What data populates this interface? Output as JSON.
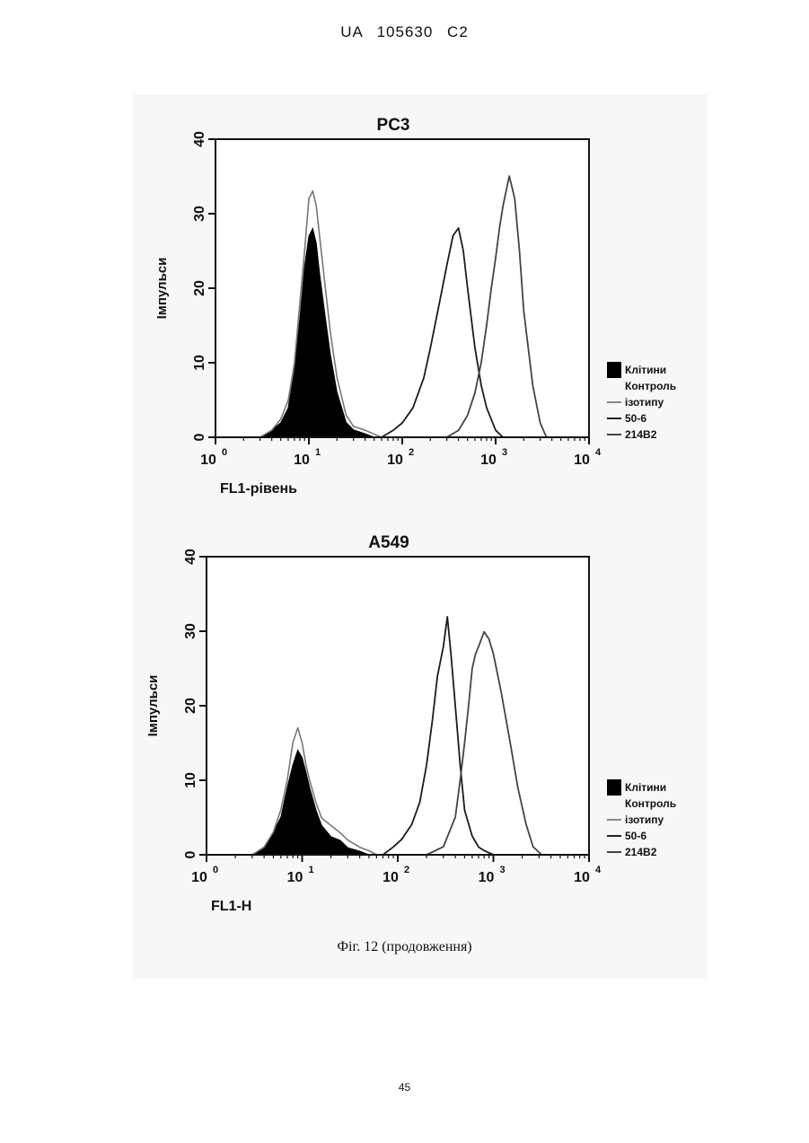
{
  "header": {
    "text": "UA   105630   C2"
  },
  "caption": "Фіг. 12 (продовження)",
  "page_number": "45",
  "chart_data": [
    {
      "type": "line",
      "title": "PC3",
      "xlabel": "FL1-рівень",
      "ylabel": "Імпульси",
      "x_scale": "log",
      "xlim": [
        1,
        10000
      ],
      "ylim": [
        0,
        40
      ],
      "y_ticks": [
        "0",
        "10",
        "20",
        "30",
        "40"
      ],
      "x_ticks": [
        {
          "base": "10",
          "exp": "0"
        },
        {
          "base": "10",
          "exp": "1"
        },
        {
          "base": "10",
          "exp": "2"
        },
        {
          "base": "10",
          "exp": "3"
        },
        {
          "base": "10",
          "exp": "4"
        }
      ],
      "legend": [
        "Клітини",
        "Контроль ізотипу",
        "50-6",
        "214B2"
      ],
      "legend_lines": [
        "Клітини",
        "Контроль",
        "ізотипу",
        "50-6",
        "214B2"
      ],
      "legend_position": "right",
      "series": [
        {
          "name": "Клітини",
          "style": "filled",
          "x": [
            3,
            4,
            5,
            6,
            7,
            8,
            9,
            10,
            11,
            12,
            13,
            15,
            17,
            20,
            25,
            30,
            40,
            50
          ],
          "y": [
            0,
            1,
            2,
            4,
            9,
            16,
            23,
            27,
            28,
            26,
            22,
            16,
            11,
            6,
            2,
            1,
            0.5,
            0
          ]
        },
        {
          "name": "Контроль ізотипу",
          "style": "line",
          "x": [
            3,
            4,
            5,
            6,
            7,
            8,
            9,
            10,
            11,
            12,
            13,
            15,
            17,
            20,
            25,
            30,
            40,
            50,
            60
          ],
          "y": [
            0,
            1,
            2.5,
            5,
            10,
            18,
            25,
            32,
            33,
            31,
            27,
            20,
            14,
            8,
            3,
            1.5,
            1,
            0.5,
            0
          ]
        },
        {
          "name": "50-6",
          "style": "line",
          "x": [
            60,
            80,
            100,
            130,
            170,
            200,
            250,
            300,
            350,
            400,
            450,
            500,
            600,
            700,
            800,
            1000,
            1200
          ],
          "y": [
            0,
            1,
            2,
            4,
            8,
            12,
            18,
            23,
            27,
            28,
            25,
            20,
            12,
            7,
            4,
            1,
            0
          ]
        },
        {
          "name": "214B2",
          "style": "line",
          "x": [
            300,
            400,
            500,
            600,
            700,
            800,
            900,
            1000,
            1100,
            1200,
            1400,
            1600,
            1800,
            2000,
            2500,
            3000,
            3500
          ],
          "y": [
            0,
            1,
            3,
            6,
            10,
            15,
            20,
            24,
            28,
            31,
            35,
            32,
            25,
            17,
            7,
            2,
            0
          ]
        }
      ]
    },
    {
      "type": "line",
      "title": "A549",
      "xlabel": "FL1-H",
      "ylabel": "Імпульси",
      "x_scale": "log",
      "xlim": [
        1,
        10000
      ],
      "ylim": [
        0,
        40
      ],
      "y_ticks": [
        "0",
        "10",
        "20",
        "30",
        "40"
      ],
      "x_ticks": [
        {
          "base": "10",
          "exp": "0"
        },
        {
          "base": "10",
          "exp": "1"
        },
        {
          "base": "10",
          "exp": "2"
        },
        {
          "base": "10",
          "exp": "3"
        },
        {
          "base": "10",
          "exp": "4"
        }
      ],
      "legend": [
        "Клітини",
        "Контроль ізотипу",
        "50-6",
        "214B2"
      ],
      "legend_lines": [
        "Клітини",
        "Контроль",
        "ізотипу",
        "50-6",
        "214B2"
      ],
      "legend_position": "right",
      "series": [
        {
          "name": "Клітини",
          "style": "filled",
          "x": [
            3,
            4,
            5,
            6,
            7,
            8,
            9,
            10,
            11,
            12,
            14,
            16,
            20,
            25,
            30,
            40,
            50
          ],
          "y": [
            0,
            1,
            3,
            5,
            9,
            12,
            14,
            13,
            11,
            9,
            6,
            4,
            2.5,
            2,
            1,
            0.5,
            0
          ]
        },
        {
          "name": "Контроль ізотипу",
          "style": "line",
          "x": [
            3,
            4,
            5,
            6,
            7,
            8,
            9,
            10,
            11,
            12,
            14,
            16,
            20,
            25,
            30,
            40,
            50,
            60
          ],
          "y": [
            0,
            1,
            3,
            6,
            10,
            15,
            17,
            15,
            12,
            10,
            7,
            5,
            4,
            3,
            2,
            1,
            0.5,
            0
          ]
        },
        {
          "name": "50-6",
          "style": "line",
          "x": [
            70,
            90,
            110,
            140,
            170,
            200,
            230,
            260,
            300,
            330,
            360,
            400,
            450,
            500,
            600,
            700,
            800,
            1000
          ],
          "y": [
            0,
            1,
            2,
            4,
            7,
            12,
            18,
            24,
            28,
            32,
            27,
            20,
            12,
            6,
            2.5,
            1,
            0.5,
            0
          ]
        },
        {
          "name": "214B2",
          "style": "line",
          "x": [
            200,
            300,
            400,
            450,
            500,
            550,
            600,
            650,
            700,
            800,
            900,
            1000,
            1200,
            1500,
            1800,
            2200,
            2600,
            3200
          ],
          "y": [
            0,
            1,
            5,
            10,
            15,
            20,
            25,
            27,
            28,
            30,
            29,
            27,
            22,
            15,
            9,
            4,
            1,
            0
          ]
        }
      ]
    }
  ]
}
